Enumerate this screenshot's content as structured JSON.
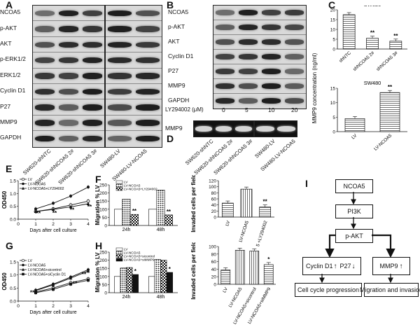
{
  "panels": {
    "A": "A",
    "B": "B",
    "C": "C",
    "D": "D",
    "E": "E",
    "F": "F",
    "G": "G",
    "H": "H",
    "I": "I"
  },
  "panelA": {
    "rows": [
      "NCOA5",
      "p-AKT",
      "AKT",
      "p-ERK1/2",
      "ERK1/2",
      "Cyclin D1",
      "P27",
      "MMP9",
      "GAPDH"
    ],
    "lanes": [
      "SW620-shNTC",
      "SW620-shNCOA5 2#",
      "SW620-shNCOA5 3#",
      "SW480-LV",
      "SW480-LV-NCOA5"
    ]
  },
  "panelB": {
    "rows": [
      "NCOA5",
      "p-AKT",
      "AKT",
      "Cyclin D1",
      "P27",
      "MMP9",
      "GAPDH"
    ],
    "treatment_label": "LY294002 (μM)",
    "doses": [
      "0",
      "5",
      "10",
      "20"
    ]
  },
  "panelD": {
    "row": "MMP9",
    "lanes": [
      "SW620-shNTC",
      "SW620-shNCOA5 2#",
      "SW620-shNCOA5 3#",
      "SW480-LV",
      "SW480-LV-NCOA5"
    ]
  },
  "panelC": {
    "ylabel": "MMP9 concentration (ng/ml)",
    "sw620": {
      "title": "SW620",
      "categories": [
        "shNTC",
        "shNCOA5 2#",
        "shNCOA5 3#"
      ],
      "values": [
        17.5,
        5.5,
        4.0
      ],
      "ylim": [
        0,
        20
      ],
      "yticks": [
        "0",
        "5",
        "10",
        "15",
        "20"
      ],
      "sig": [
        "",
        "**",
        "**"
      ]
    },
    "sw480": {
      "title": "SW480",
      "categories": [
        "LV",
        "LV-NCOA5"
      ],
      "values": [
        4.5,
        13.5
      ],
      "ylim": [
        0,
        15
      ],
      "yticks": [
        "0",
        "5",
        "10",
        "15"
      ],
      "sig": [
        "",
        "**"
      ]
    }
  },
  "panelE": {
    "ylabel": "OD450",
    "xlabel": "Days after cell culture",
    "legend": [
      "LV",
      "LV-NCOA5",
      "LV-NCOA5+LY294002"
    ],
    "yticks": [
      "0.0",
      "0.5",
      "1.0",
      "1.5"
    ],
    "xticks": [
      "0",
      "1",
      "2",
      "3",
      "4"
    ],
    "sig": "**"
  },
  "panelF": {
    "ylabel": "Migration % LV",
    "legend": [
      "LV",
      "LV-NCOA5",
      "LV-NCOA5+LY294002"
    ],
    "groups": [
      "24h",
      "48h"
    ],
    "yticks": [
      "0",
      "50",
      "100",
      "150",
      "200",
      "250"
    ],
    "sig": "**"
  },
  "panelF2": {
    "ylabel": "Invaded cells per field",
    "categories": [
      "LV",
      "LV-NCOA5",
      "LV-NCOA5 +LY294002"
    ],
    "yticks": [
      "0",
      "20",
      "40",
      "60",
      "80",
      "100",
      "120"
    ],
    "sig": "**"
  },
  "panelG": {
    "ylabel": "OD450",
    "xlabel": "Days after cell culture",
    "legend": [
      "LV",
      "LV-NCOA5",
      "LV-NCOA5+sicontrol",
      "LV-NCOA5+siCyclin D1"
    ],
    "yticks": [
      "0.0",
      "0.5",
      "1.0",
      "1.5"
    ],
    "xticks": [
      "0",
      "1",
      "2",
      "3",
      "4"
    ],
    "sig": "**"
  },
  "panelH": {
    "ylabel": "Migration % LV",
    "legend": [
      "LV",
      "LV-NCOA5",
      "LV-NCOA5+sicontrol",
      "LV-NCOA5+siMMP9"
    ],
    "groups": [
      "24h",
      "48h"
    ],
    "yticks": [
      "0",
      "50",
      "100",
      "150",
      "200",
      "250"
    ],
    "sig": "*"
  },
  "panelH2": {
    "ylabel": "Invaded cells per field",
    "categories": [
      "LV",
      "LV-NCOA5",
      "LV-NCOA5+sicontrol",
      "LV-NCOA5+siMMP9"
    ],
    "yticks": [
      "0",
      "20",
      "40",
      "60",
      "80",
      "100"
    ],
    "sig": "*"
  },
  "chart_data": [
    {
      "type": "bar",
      "panel": "C-SW620",
      "title": "SW620",
      "categories": [
        "shNTC",
        "shNCOA5 2#",
        "shNCOA5 3#"
      ],
      "values": [
        17.5,
        5.5,
        4.0
      ],
      "ylim": [
        0,
        20
      ]
    },
    {
      "type": "bar",
      "panel": "C-SW480",
      "title": "SW480",
      "categories": [
        "LV",
        "LV-NCOA5"
      ],
      "values": [
        4.5,
        13.5
      ],
      "ylim": [
        0,
        15
      ]
    },
    {
      "type": "line",
      "panel": "E",
      "x": [
        1,
        2,
        3,
        4
      ],
      "xlabel": "Days after cell culture",
      "ylabel": "OD450",
      "ylim": [
        0,
        1.5
      ],
      "series": [
        {
          "name": "LV",
          "values": [
            0.3,
            0.4,
            0.55,
            0.7
          ]
        },
        {
          "name": "LV-NCOA5",
          "values": [
            0.4,
            0.62,
            0.9,
            1.25
          ]
        },
        {
          "name": "LV-NCOA5+LY294002",
          "values": [
            0.3,
            0.38,
            0.48,
            0.6
          ]
        }
      ]
    },
    {
      "type": "bar",
      "panel": "F",
      "categories": [
        "24h",
        "48h"
      ],
      "ylabel": "Migration % LV",
      "ylim": [
        0,
        250
      ],
      "series": [
        {
          "name": "LV",
          "values": [
            100,
            100
          ]
        },
        {
          "name": "LV-NCOA5",
          "values": [
            162,
            218
          ]
        },
        {
          "name": "LV-NCOA5+LY294002",
          "values": [
            68,
            65
          ]
        }
      ]
    },
    {
      "type": "bar",
      "panel": "F-invasion",
      "categories": [
        "LV",
        "LV-NCOA5",
        "LV-NCOA5 +LY294002"
      ],
      "values": [
        46,
        92,
        33
      ],
      "ylim": [
        0,
        120
      ],
      "ylabel": "Invaded cells per field"
    },
    {
      "type": "line",
      "panel": "G",
      "x": [
        1,
        2,
        3,
        4
      ],
      "xlabel": "Days after cell culture",
      "ylabel": "OD450",
      "ylim": [
        0,
        1.5
      ],
      "series": [
        {
          "name": "LV",
          "values": [
            0.35,
            0.5,
            0.7,
            0.85
          ]
        },
        {
          "name": "LV-NCOA5",
          "values": [
            0.42,
            0.65,
            0.92,
            1.2
          ]
        },
        {
          "name": "LV-NCOA5+sicontrol",
          "values": [
            0.4,
            0.62,
            0.88,
            1.15
          ]
        },
        {
          "name": "LV-NCOA5+siCyclin D1",
          "values": [
            0.32,
            0.45,
            0.65,
            0.8
          ]
        }
      ]
    },
    {
      "type": "bar",
      "panel": "H",
      "categories": [
        "24h",
        "48h"
      ],
      "ylabel": "Migration % LV",
      "ylim": [
        0,
        250
      ],
      "series": [
        {
          "name": "LV",
          "values": [
            100,
            100
          ]
        },
        {
          "name": "LV-NCOA5",
          "values": [
            152,
            205
          ]
        },
        {
          "name": "LV-NCOA5+sicontrol",
          "values": [
            155,
            200
          ]
        },
        {
          "name": "LV-NCOA5+siMMP9",
          "values": [
            112,
            125
          ]
        }
      ]
    },
    {
      "type": "bar",
      "panel": "H-invasion",
      "categories": [
        "LV",
        "LV-NCOA5",
        "LV-NCOA5+sicontrol",
        "LV-NCOA5+siMMP9"
      ],
      "values": [
        38,
        90,
        88,
        52
      ],
      "ylim": [
        0,
        100
      ],
      "ylabel": "Invaded cells per field"
    }
  ],
  "flow": {
    "ncoa5": "NCOA5",
    "pi3k": "PI3K",
    "pakt": "p-AKT",
    "cyclin": "Cyclin D1",
    "p27": "P27",
    "mmp9": "MMP9",
    "cycle": "Cell cycle progression",
    "migration": "Migration and invasion"
  }
}
